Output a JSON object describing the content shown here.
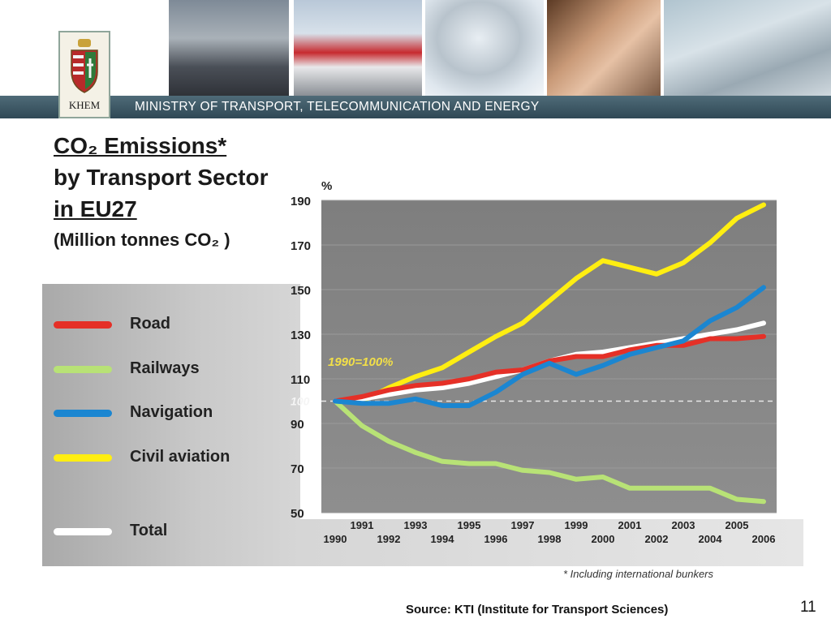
{
  "header": {
    "ministry": "MINISTRY OF TRANSPORT, TELECOMMUNICATION AND ENERGY",
    "logo_text": "KHEM"
  },
  "title": {
    "line1": "CO₂ Emissions*",
    "line2": "by Transport Sector",
    "line3": "in EU27",
    "subtitle": "(Million tonnes CO₂ )"
  },
  "legend": [
    {
      "label": "Road",
      "color": "#e53027"
    },
    {
      "label": "Railways",
      "color": "#b8e276"
    },
    {
      "label": "Navigation",
      "color": "#1b86d1"
    },
    {
      "label": "Civil aviation",
      "color": "#ffee11"
    },
    {
      "label": "Total",
      "color": "#ffffff"
    }
  ],
  "chart_data": {
    "type": "line",
    "ylabel": "%",
    "ylim": [
      50,
      190
    ],
    "yticks": [
      190,
      170,
      150,
      130,
      110,
      90,
      70,
      50
    ],
    "baseline_value": 100,
    "baseline_label": "100",
    "annotation": "1990=100%",
    "x": [
      1990,
      1991,
      1992,
      1993,
      1994,
      1995,
      1996,
      1997,
      1998,
      1999,
      2000,
      2001,
      2002,
      2003,
      2004,
      2005,
      2006
    ],
    "series": [
      {
        "name": "Railways",
        "color": "#b8e276",
        "values": [
          100,
          89,
          82,
          77,
          73,
          72,
          72,
          69,
          68,
          65,
          66,
          61,
          61,
          61,
          61,
          56,
          55
        ]
      },
      {
        "name": "Civil aviation",
        "color": "#ffee11",
        "values": [
          100,
          100,
          106,
          111,
          115,
          122,
          129,
          135,
          145,
          155,
          163,
          160,
          157,
          162,
          171,
          182,
          188
        ]
      },
      {
        "name": "Total",
        "color": "#ffffff",
        "values": [
          100,
          101,
          103,
          105,
          106,
          108,
          111,
          114,
          118,
          121,
          122,
          124,
          126,
          128,
          130,
          132,
          135
        ]
      },
      {
        "name": "Road",
        "color": "#e53027",
        "values": [
          100,
          102,
          105,
          107,
          108,
          110,
          113,
          114,
          118,
          120,
          120,
          123,
          125,
          125,
          128,
          128,
          129
        ]
      },
      {
        "name": "Navigation",
        "color": "#1b86d1",
        "values": [
          100,
          99,
          99,
          101,
          98,
          98,
          104,
          112,
          117,
          112,
          116,
          121,
          124,
          127,
          136,
          142,
          151
        ]
      }
    ]
  },
  "footnote": "* Including international bunkers",
  "source": "Source: KTI (Institute for Transport Sciences)",
  "page_number": "11"
}
